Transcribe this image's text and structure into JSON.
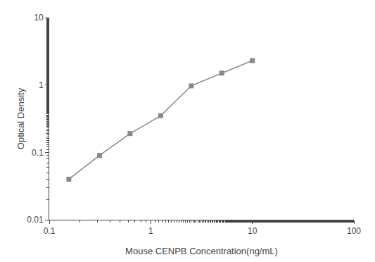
{
  "chart_data": {
    "type": "line",
    "x": [
      0.156,
      0.313,
      0.625,
      1.25,
      2.5,
      5.0,
      10.0
    ],
    "values": [
      0.04,
      0.09,
      0.19,
      0.35,
      0.97,
      1.5,
      2.3
    ],
    "xlabel": "Mouse CENPB Concentration(ng/mL)",
    "ylabel": "Optical Density",
    "xlim": [
      0.1,
      100
    ],
    "ylim": [
      0.01,
      10
    ],
    "xticks": [
      0.1,
      1,
      10,
      100
    ],
    "yticks": [
      0.01,
      0.1,
      1,
      10
    ],
    "log": true,
    "grid": false,
    "color": "#888888",
    "marker": "square"
  }
}
